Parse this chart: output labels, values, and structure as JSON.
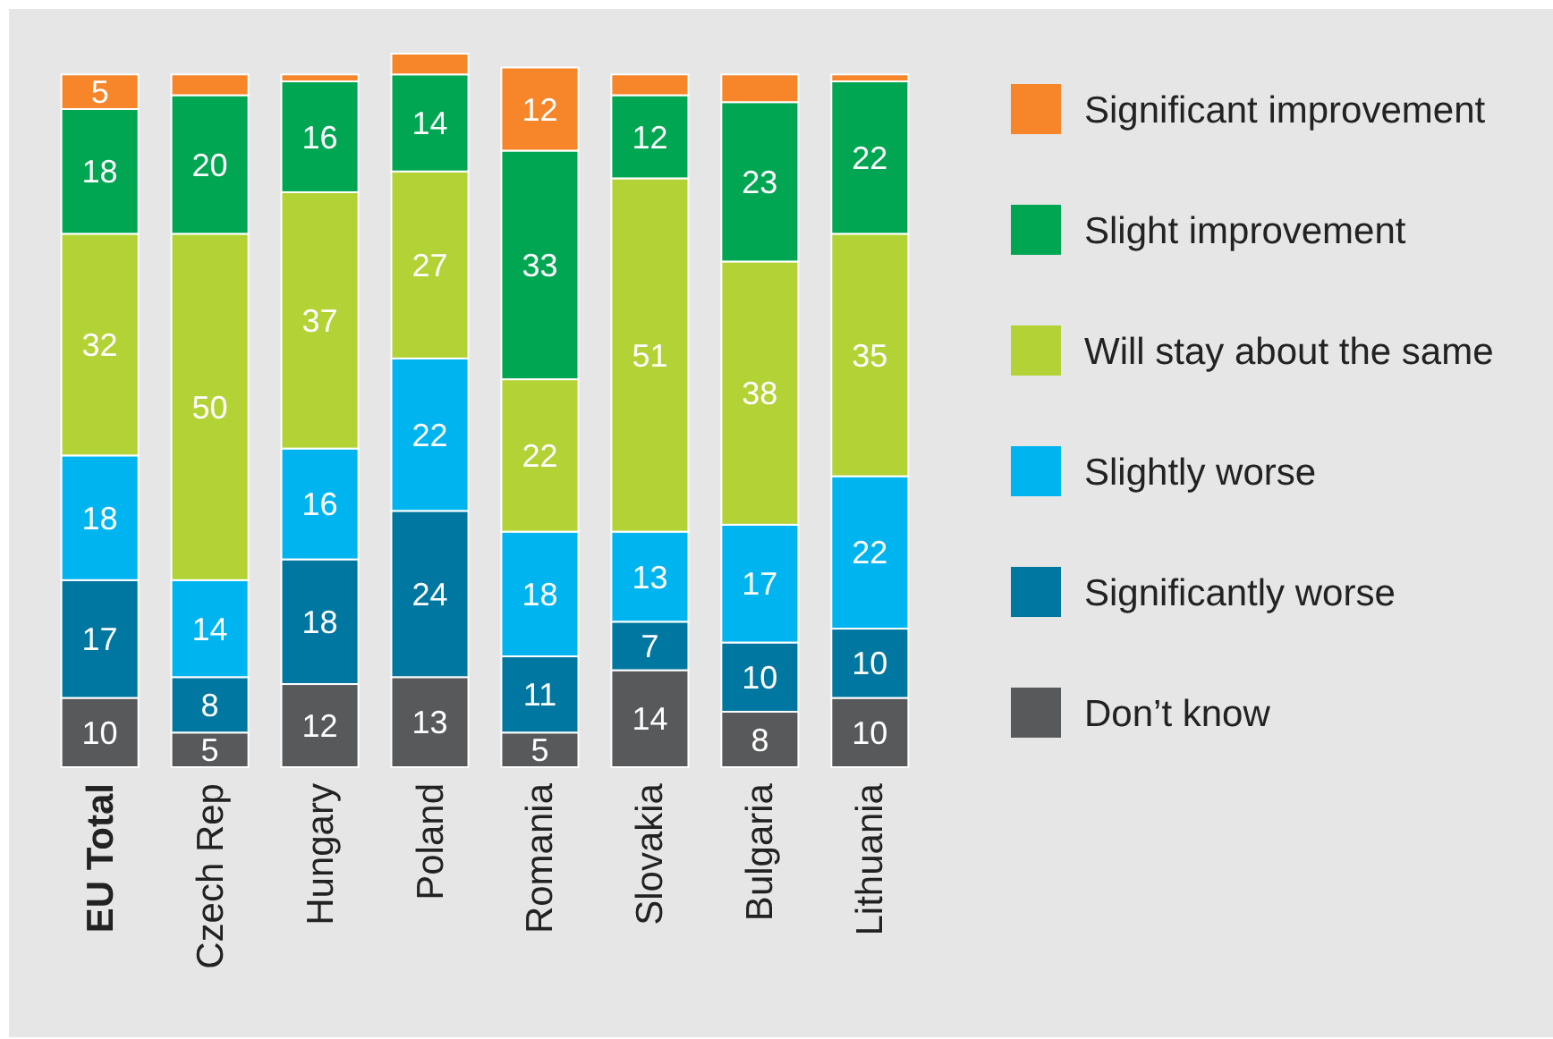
{
  "chart_data": {
    "type": "bar",
    "stacked": true,
    "legend": "right",
    "categories": [
      "EU Total",
      "Czech Rep",
      "Hungary",
      "Poland",
      "Romania",
      "Slovakia",
      "Bulgaria",
      "Lithuania"
    ],
    "series": [
      {
        "name": "Don’t know",
        "color": "#58595b",
        "values": [
          10,
          5,
          12,
          13,
          5,
          14,
          8,
          10
        ],
        "value_labels": [
          "10",
          "5",
          "12",
          "13",
          "5",
          "14",
          "8",
          "10"
        ]
      },
      {
        "name": "Significantly worse",
        "color": "#0077a0",
        "values": [
          17,
          8,
          18,
          24,
          11,
          7,
          10,
          10
        ],
        "value_labels": [
          "17",
          "8",
          "18",
          "24",
          "11",
          "7",
          "10",
          "10"
        ]
      },
      {
        "name": "Slightly worse",
        "color": "#00b5ef",
        "values": [
          18,
          14,
          16,
          22,
          18,
          13,
          17,
          22
        ],
        "value_labels": [
          "18",
          "14",
          "16",
          "22",
          "18",
          "13",
          "17",
          "22"
        ]
      },
      {
        "name": "Will stay about the same",
        "color": "#b2d235",
        "values": [
          32,
          50,
          37,
          27,
          22,
          51,
          38,
          35
        ],
        "value_labels": [
          "32",
          "50",
          "37",
          "27",
          "22",
          "51",
          "38",
          "35"
        ]
      },
      {
        "name": "Slight improvement",
        "color": "#00a651",
        "values": [
          18,
          20,
          16,
          14,
          33,
          12,
          23,
          22
        ],
        "value_labels": [
          "18",
          "20",
          "16",
          "14",
          "33",
          "12",
          "23",
          "22"
        ]
      },
      {
        "name": "Significant improvement",
        "color": "#f7862a",
        "values": [
          5,
          3,
          1,
          3,
          12,
          3,
          4,
          1
        ],
        "value_labels": [
          "5",
          null,
          null,
          null,
          "12",
          null,
          null,
          null
        ]
      }
    ]
  }
}
